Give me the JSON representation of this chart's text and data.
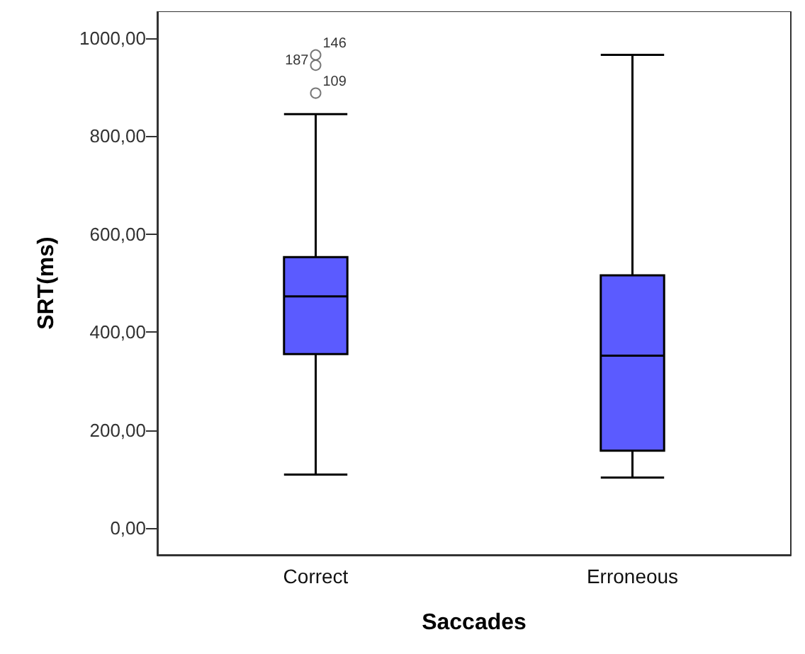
{
  "chart_data": {
    "type": "box",
    "xlabel": "Saccades",
    "ylabel": "SRT(ms)",
    "categories": [
      "Correct",
      "Erroneous"
    ],
    "color": "#5b5bff",
    "boxes": [
      {
        "low": 109,
        "q1": 355,
        "median": 473,
        "q3": 553,
        "high": 845,
        "outliers": [
          966,
          945,
          888
        ]
      },
      {
        "low": 103,
        "q1": 158,
        "median": 352,
        "q3": 516,
        "high": 966
      }
    ],
    "annotations": [
      "146",
      "187",
      "109"
    ],
    "ylim": [
      -55,
      1055
    ],
    "yticks": [
      {
        "value": 0,
        "label": "0,00"
      },
      {
        "value": 200,
        "label": "200,00"
      },
      {
        "value": 400,
        "label": "400,00"
      },
      {
        "value": 600,
        "label": "600,00"
      },
      {
        "value": 800,
        "label": "800,00"
      },
      {
        "value": 1000,
        "label": "1000,00"
      }
    ],
    "grid": false
  }
}
